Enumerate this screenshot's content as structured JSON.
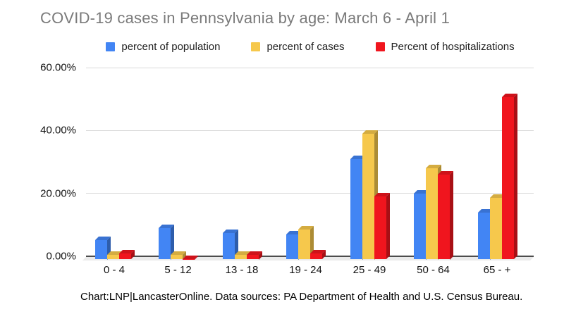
{
  "footer": {
    "text": "Chart:LNP|LancasterOnline. Data sources: PA Department of Health and U.S. Census Bureau."
  },
  "chart_data": {
    "type": "bar",
    "effect": "3d",
    "title": "COVID-19 cases in Pennsylvania by age: March 6 - April 1",
    "title_color": "#7a7a7a",
    "categories": [
      "0 - 4",
      "5 - 12",
      "13 - 18",
      "19 - 24",
      "25 - 49",
      "50 - 64",
      "65 - +"
    ],
    "series": [
      {
        "name": "percent of population",
        "color": "#4285F4",
        "values": [
          6.2,
          10.0,
          8.3,
          8.0,
          32.0,
          21.0,
          15.0
        ]
      },
      {
        "name": "percent of cases",
        "color": "#F6C84C",
        "values": [
          1.4,
          1.4,
          1.4,
          9.5,
          40.0,
          29.0,
          19.5
        ]
      },
      {
        "name": "Percent of hospitalizations",
        "color": "#F0151E",
        "values": [
          1.8,
          0.2,
          1.5,
          1.8,
          20.0,
          27.0,
          51.5
        ]
      }
    ],
    "xlabel": "",
    "ylabel": "",
    "ylim": [
      0,
      60
    ],
    "yticks": [
      {
        "value": 0,
        "label": "0.00%"
      },
      {
        "value": 20,
        "label": "20.00%"
      },
      {
        "value": 40,
        "label": "40.00%"
      },
      {
        "value": 60,
        "label": "60.00%"
      }
    ],
    "grid": true,
    "legend_position": "top",
    "style": {
      "gridline_color": "#dadada",
      "axis_color": "#4d4d4d",
      "floor_color": "#ebebeb"
    }
  }
}
